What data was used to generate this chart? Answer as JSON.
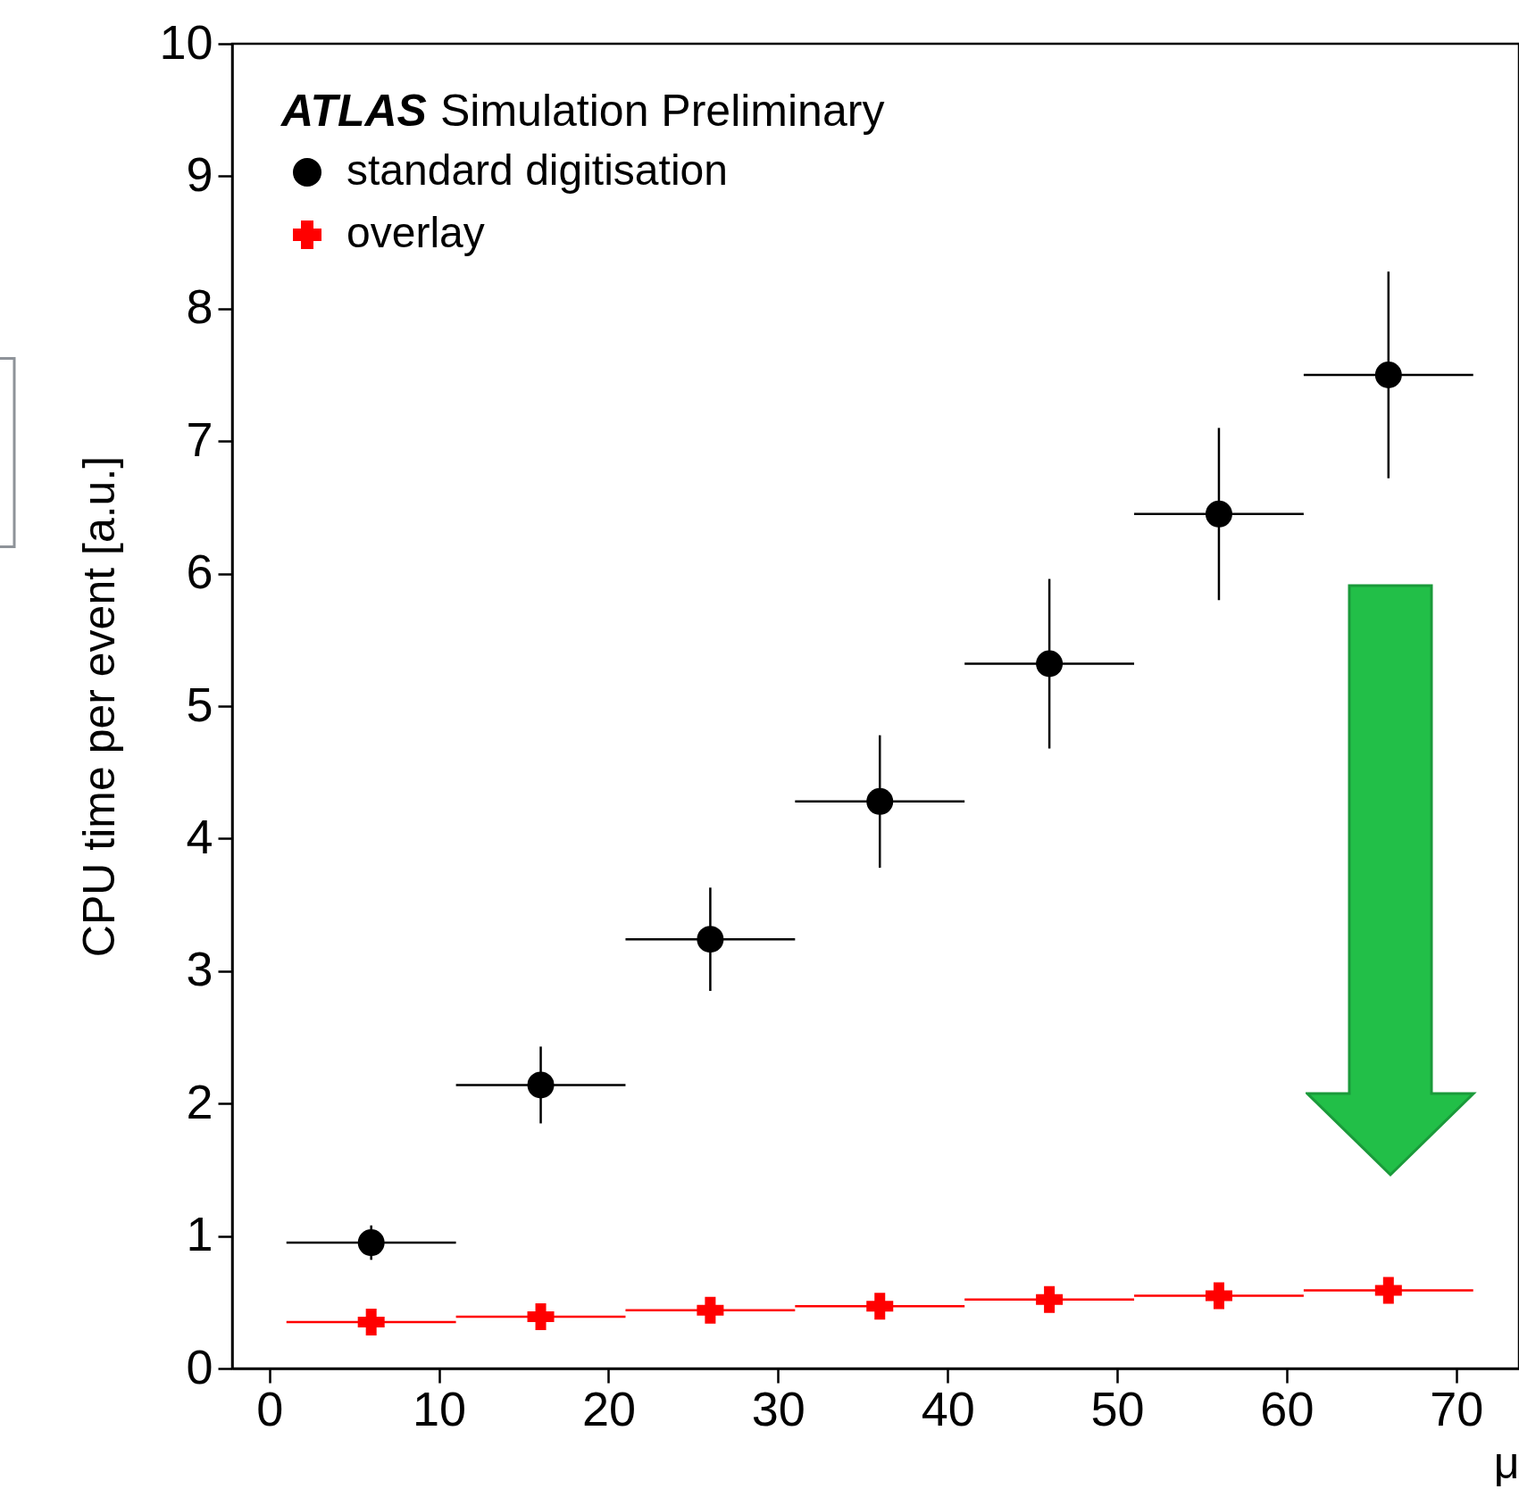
{
  "chart_data": {
    "type": "scatter",
    "xlabel": "μ",
    "ylabel": "CPU time per event [a.u.]",
    "annotations": [
      "ATLAS Simulation Preliminary"
    ],
    "x": [
      6,
      16,
      26,
      36,
      46,
      56,
      66
    ],
    "series": [
      {
        "name": "standard digitisation",
        "color": "#000000",
        "marker": "circle",
        "values": [
          0.95,
          2.14,
          3.24,
          4.28,
          5.32,
          6.45,
          7.5
        ],
        "errors": [
          0.13,
          0.29,
          0.39,
          0.5,
          0.64,
          0.65,
          0.78
        ],
        "xerrors": [
          5,
          5,
          5,
          5,
          5,
          5,
          5
        ]
      },
      {
        "name": "overlay",
        "color": "#ff0000",
        "marker": "cross",
        "values": [
          0.35,
          0.39,
          0.44,
          0.47,
          0.52,
          0.55,
          0.59
        ],
        "xerrors": [
          5,
          5,
          5,
          5,
          5,
          5,
          5
        ]
      }
    ],
    "xlim": [
      -2.2,
      73.7
    ],
    "xticks": [
      0,
      10,
      20,
      30,
      40,
      50,
      60,
      70
    ],
    "ylim": [
      0,
      10
    ],
    "yticks": [
      0,
      1,
      2,
      3,
      4,
      5,
      6,
      7,
      8,
      9,
      10
    ],
    "grid": false,
    "legend": "top left"
  }
}
